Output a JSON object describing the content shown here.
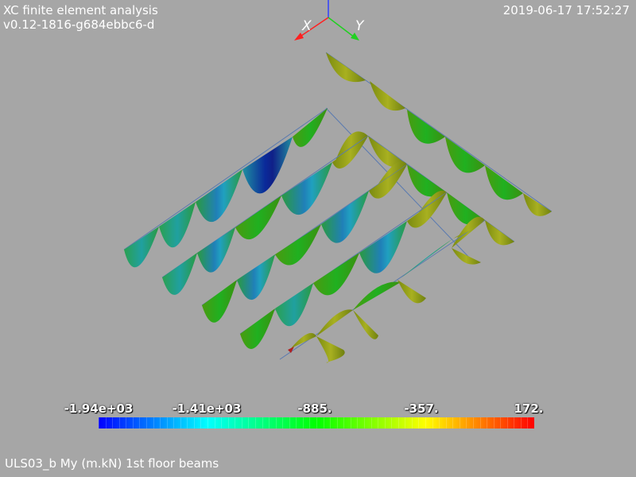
{
  "header": {
    "app_title": "XC finite element analysis",
    "version": "v0.12-1816-g684ebbc6-d",
    "timestamp": "2019-06-17 17:52:27"
  },
  "axes": {
    "x_label": "X",
    "y_label": "Y",
    "x_color": "#ff2020",
    "y_color": "#20d020",
    "z_color": "#3040ff"
  },
  "colorbar": {
    "ticks": [
      "-1.94e+03",
      "-1.41e+03",
      "-885.",
      "-357.",
      "172."
    ],
    "min": -1940,
    "max": 172,
    "colors": [
      "#0000ff",
      "#00ffff",
      "#00ff00",
      "#ffff00",
      "#ff0000"
    ]
  },
  "footer": {
    "caption": "ULS03_b My (m.kN) 1st floor beams"
  }
}
